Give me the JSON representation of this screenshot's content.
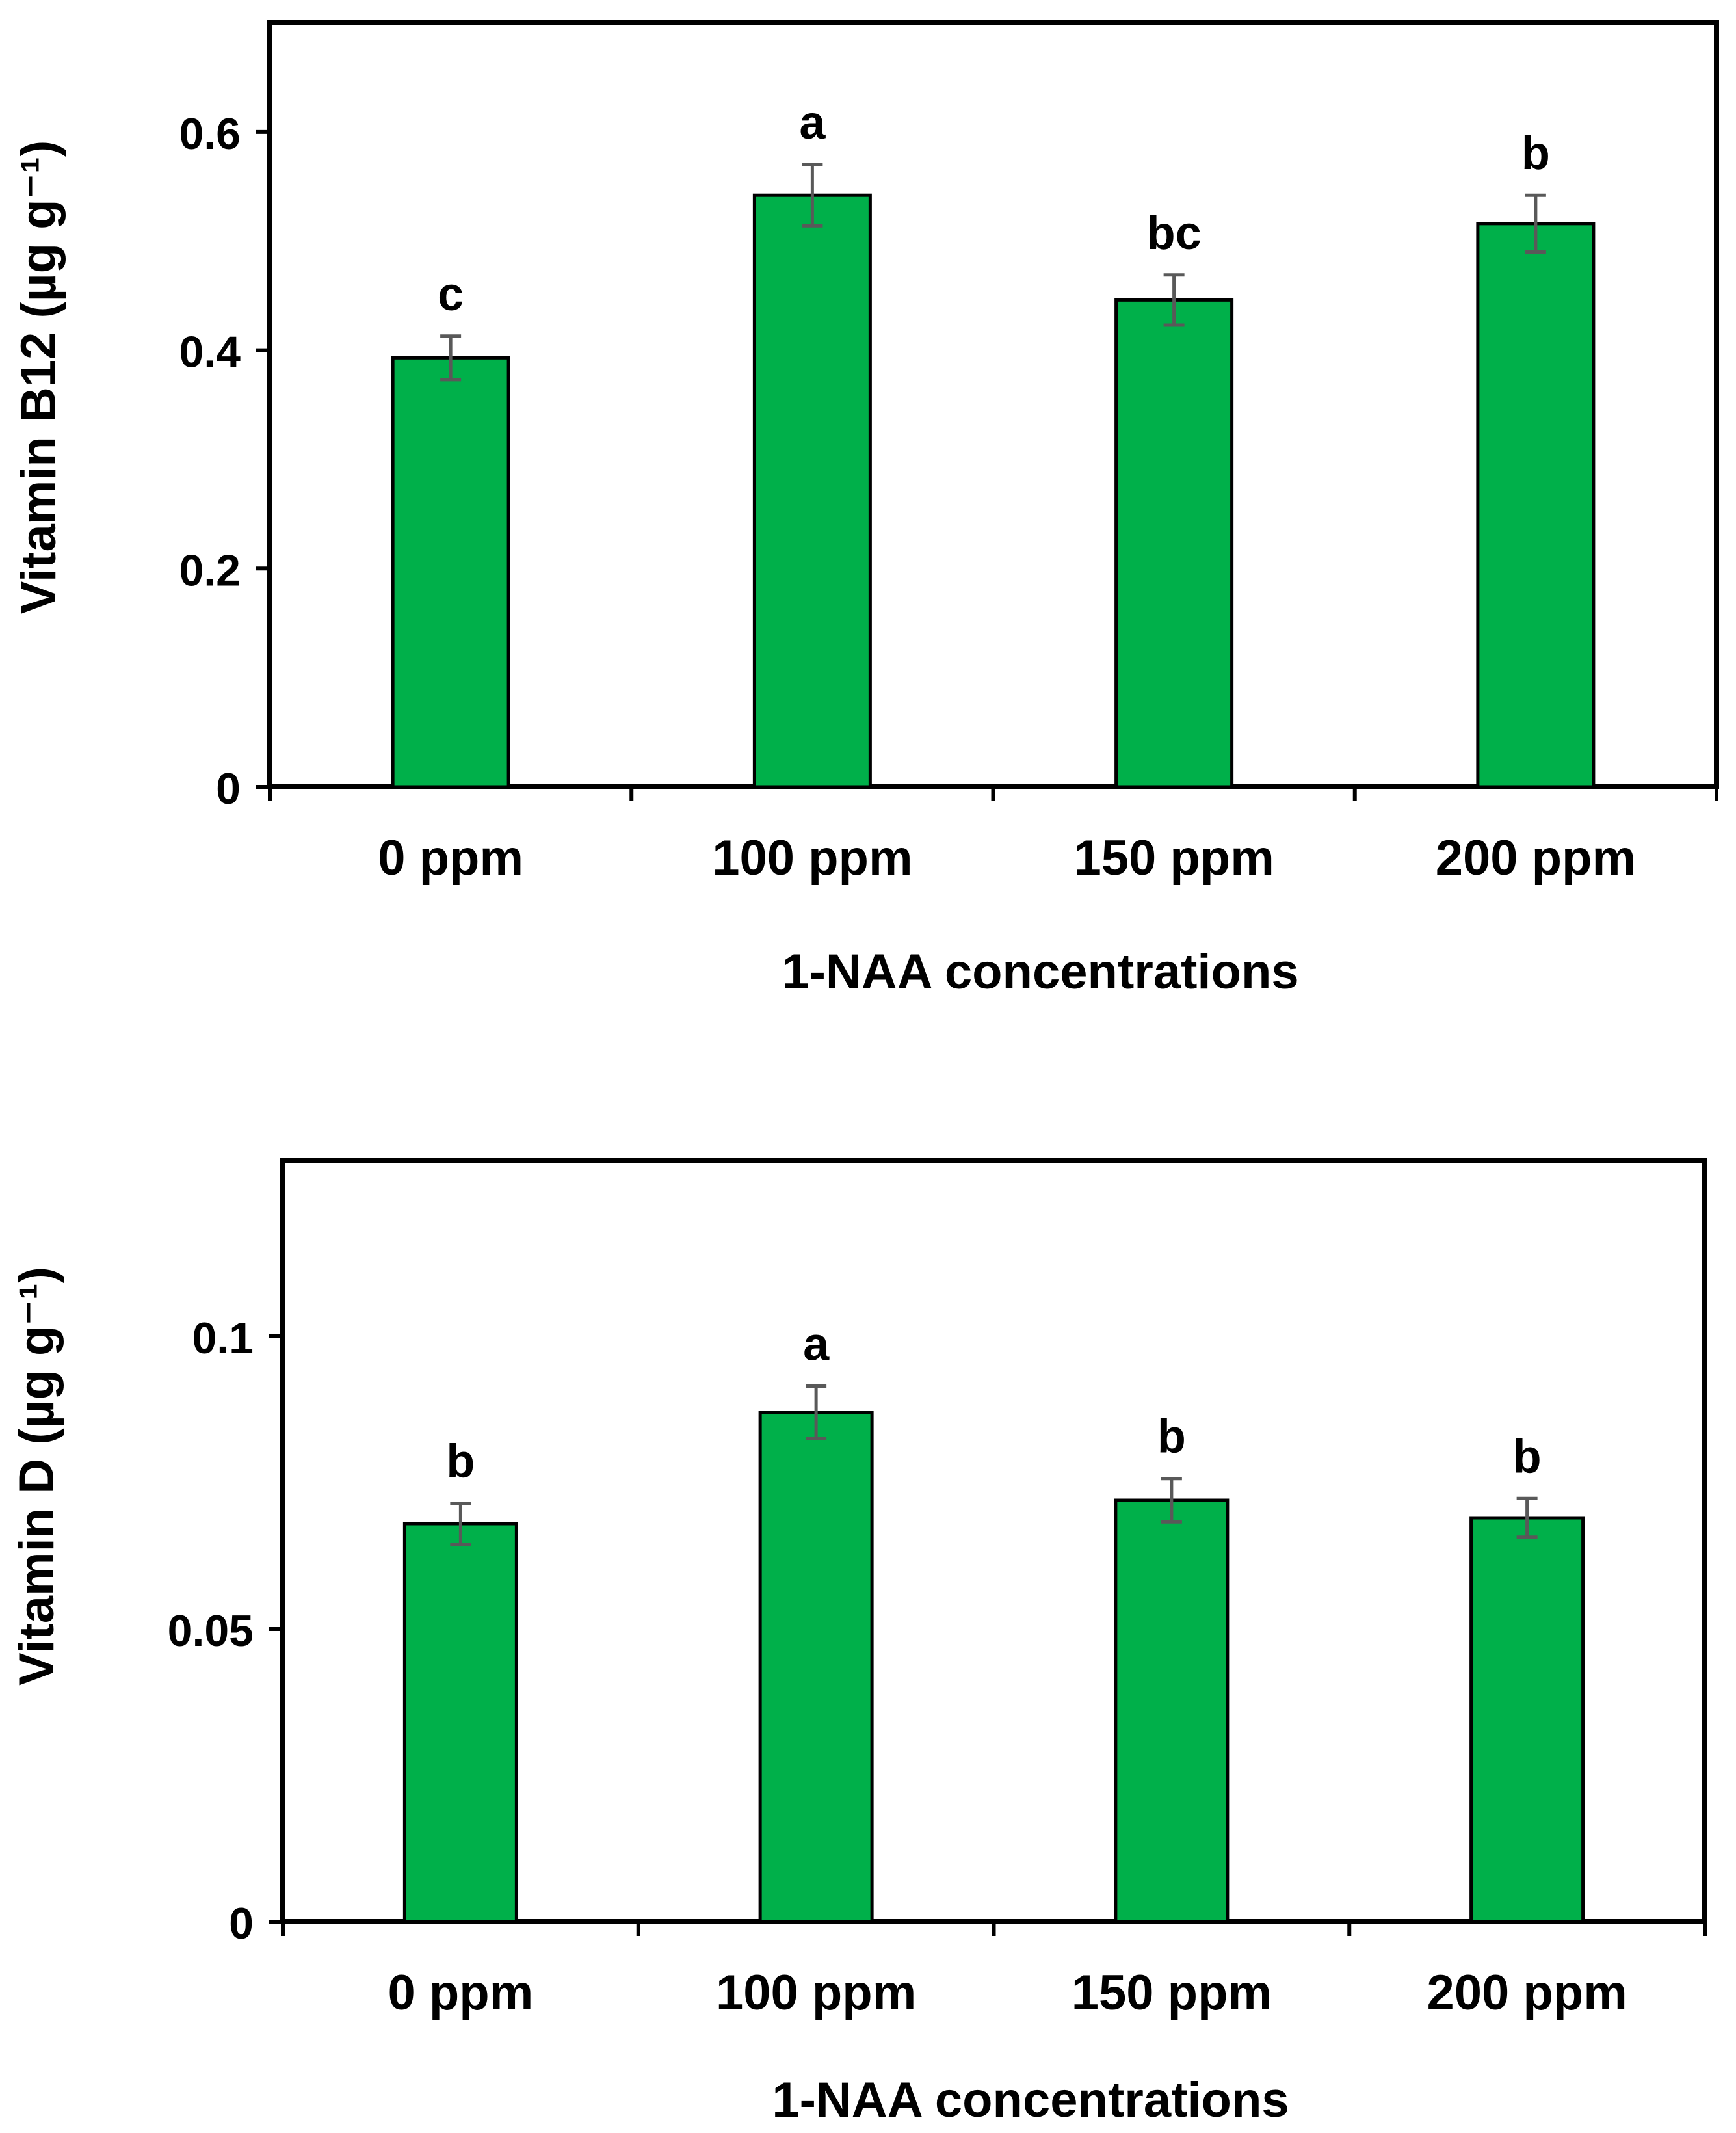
{
  "chart_data": [
    {
      "type": "bar",
      "categories": [
        "0 ppm",
        "100 ppm",
        "150 ppm",
        "200 ppm"
      ],
      "values": [
        0.393,
        0.542,
        0.446,
        0.516
      ],
      "errors": [
        0.02,
        0.028,
        0.023,
        0.026
      ],
      "letters": [
        "c",
        "a",
        "bc",
        "b"
      ],
      "title": "",
      "xlabel": "1-NAA concentrations",
      "ylabel": "Vitamin B12 (µg g⁻¹)",
      "ylim": [
        0,
        0.7
      ],
      "yticks": [
        0,
        0.2,
        0.4,
        0.6
      ],
      "ytick_labels": [
        "0",
        "0.2",
        "0.4",
        "0.6"
      ],
      "grid": false,
      "legend": "none",
      "bar_color": "#00b04a",
      "error_bar_color": "#595959"
    },
    {
      "type": "bar",
      "categories": [
        "0 ppm",
        "100 ppm",
        "150 ppm",
        "200 ppm"
      ],
      "values": [
        0.068,
        0.087,
        0.072,
        0.069
      ],
      "errors": [
        0.0035,
        0.0045,
        0.0037,
        0.0033
      ],
      "letters": [
        "b",
        "a",
        "b",
        "b"
      ],
      "title": "",
      "xlabel": "1-NAA concentrations",
      "ylabel": "Vitamin D (µg g⁻¹)",
      "ylim": [
        0,
        0.13
      ],
      "yticks": [
        0,
        0.05,
        0.1
      ],
      "ytick_labels": [
        "0",
        "0.05",
        "0.1"
      ],
      "grid": false,
      "legend": "none",
      "bar_color": "#00b04a",
      "error_bar_color": "#595959"
    }
  ]
}
